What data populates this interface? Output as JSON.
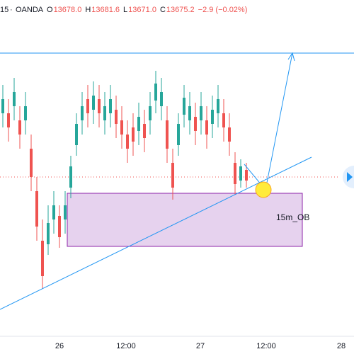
{
  "header": {
    "symbol": "15",
    "broker": "OANDA",
    "ohlc": [
      {
        "label": "O",
        "value": "13678.0"
      },
      {
        "label": "H",
        "value": "13681.6"
      },
      {
        "label": "L",
        "value": "13671.0"
      },
      {
        "label": "C",
        "value": "13675.2"
      }
    ],
    "change": "−2.9 (−0.02%)"
  },
  "annotation": "15m_OB",
  "x_axis": {
    "labels": [
      "26",
      "12:00",
      "27",
      "12:00",
      "28"
    ]
  }
}
